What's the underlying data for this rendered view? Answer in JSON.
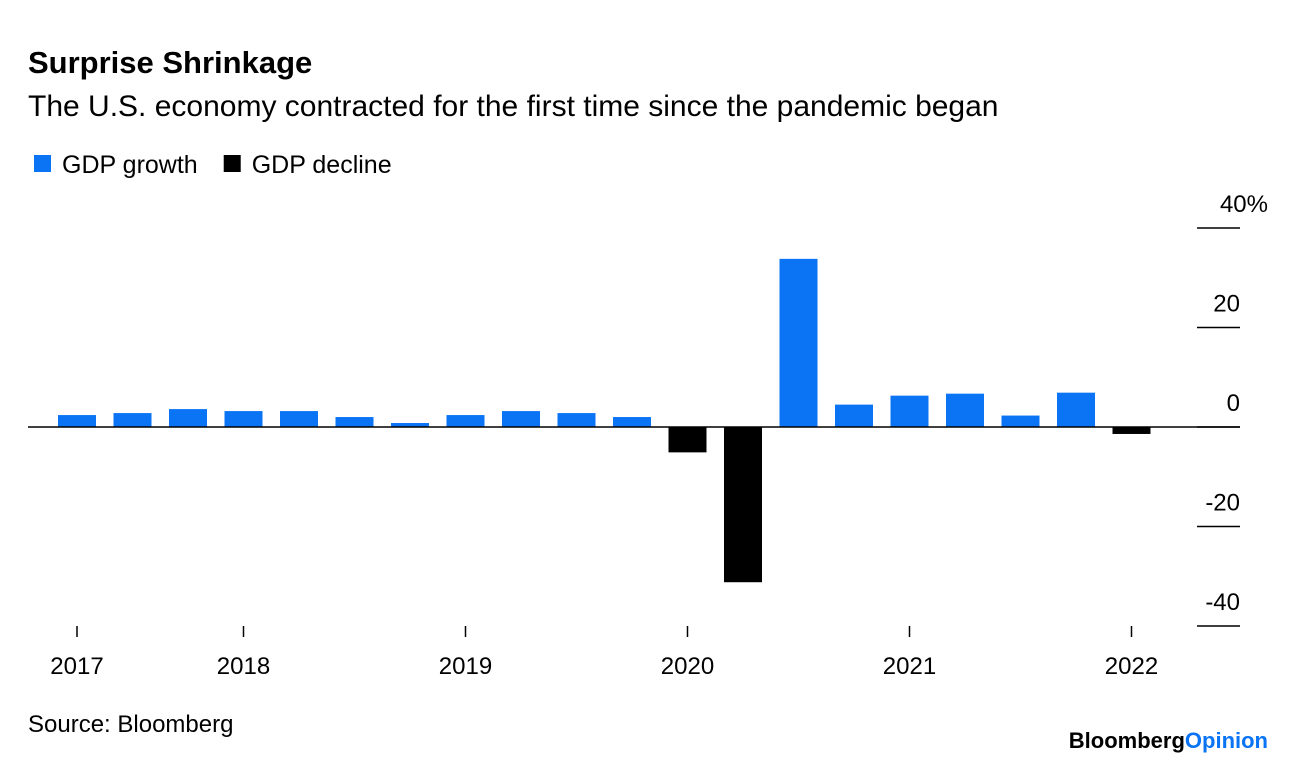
{
  "chart_data": {
    "type": "bar",
    "title": "Surprise Shrinkage",
    "subtitle": "The U.S. economy contracted for the first time since the pandemic began",
    "categories": [
      "2017",
      null,
      null,
      "2018",
      null,
      null,
      null,
      "2019",
      null,
      null,
      null,
      "2020",
      null,
      null,
      null,
      "2021",
      null,
      null,
      null,
      "2022"
    ],
    "series": [
      {
        "name": "GDP growth",
        "color": "#0a74f5",
        "values": [
          2.4,
          2.8,
          3.6,
          3.2,
          3.2,
          2.0,
          0.8,
          2.4,
          3.2,
          2.8,
          2.0,
          null,
          null,
          33.8,
          4.5,
          6.3,
          6.7,
          2.3,
          6.9,
          null
        ]
      },
      {
        "name": "GDP decline",
        "color": "#000000",
        "values": [
          null,
          null,
          null,
          null,
          null,
          null,
          null,
          null,
          null,
          null,
          null,
          -5.1,
          -31.2,
          null,
          null,
          null,
          null,
          null,
          null,
          -1.4
        ]
      }
    ],
    "ylim": [
      -40,
      40
    ],
    "yticks": [
      -40,
      -20,
      0,
      20,
      {
        "value": 40,
        "label": "40%"
      }
    ],
    "source": "Source: Bloomberg",
    "logo": [
      "Bloomberg",
      "Opinion"
    ]
  }
}
